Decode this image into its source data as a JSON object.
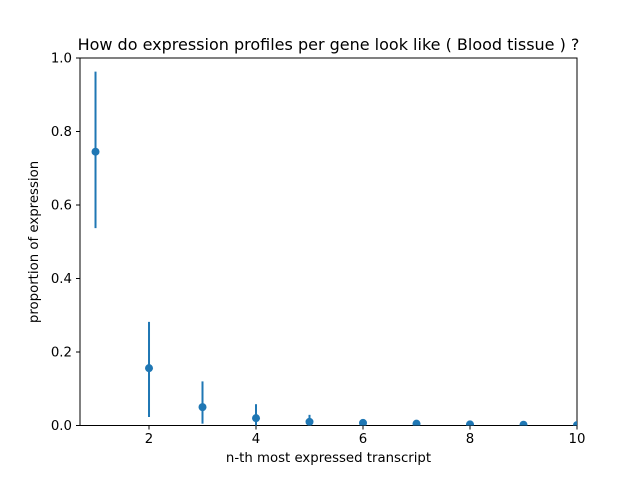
{
  "figure": {
    "background": "#ffffff",
    "spine_color": "#000000",
    "text_color": "#000000"
  },
  "chart_data": {
    "type": "scatter",
    "subtype": "errorbar",
    "title": "How do expression profiles per gene look like ( Blood tissue ) ?",
    "xlabel": "n-th most expressed transcript",
    "ylabel": "proportion of expression",
    "marker_color": "#1f77b4",
    "errorbar_color": "#1f77b4",
    "grid": false,
    "legend": "none",
    "xlim": [
      0.71,
      10.0
    ],
    "ylim": [
      0.0,
      1.0
    ],
    "x": [
      1,
      2,
      3,
      4,
      5,
      6,
      7,
      8,
      9,
      10
    ],
    "y": [
      0.745,
      0.156,
      0.05,
      0.02,
      0.01,
      0.007,
      0.005,
      0.003,
      0.002,
      0.001
    ],
    "err_low": [
      0.537,
      0.023,
      0.005,
      0.0,
      0.0,
      0.0,
      0.0,
      0.0,
      0.0,
      0.0
    ],
    "err_high": [
      0.963,
      0.282,
      0.12,
      0.058,
      0.029,
      0.015,
      0.01,
      0.006,
      0.005,
      0.003
    ],
    "xticks": [
      {
        "v": 2,
        "label": "2"
      },
      {
        "v": 4,
        "label": "4"
      },
      {
        "v": 6,
        "label": "6"
      },
      {
        "v": 8,
        "label": "8"
      },
      {
        "v": 10,
        "label": "10"
      }
    ],
    "yticks": [
      {
        "v": 0.0,
        "label": "0.0"
      },
      {
        "v": 0.2,
        "label": "0.2"
      },
      {
        "v": 0.4,
        "label": "0.4"
      },
      {
        "v": 0.6,
        "label": "0.6"
      },
      {
        "v": 0.8,
        "label": "0.8"
      },
      {
        "v": 1.0,
        "label": "1.0"
      }
    ]
  }
}
